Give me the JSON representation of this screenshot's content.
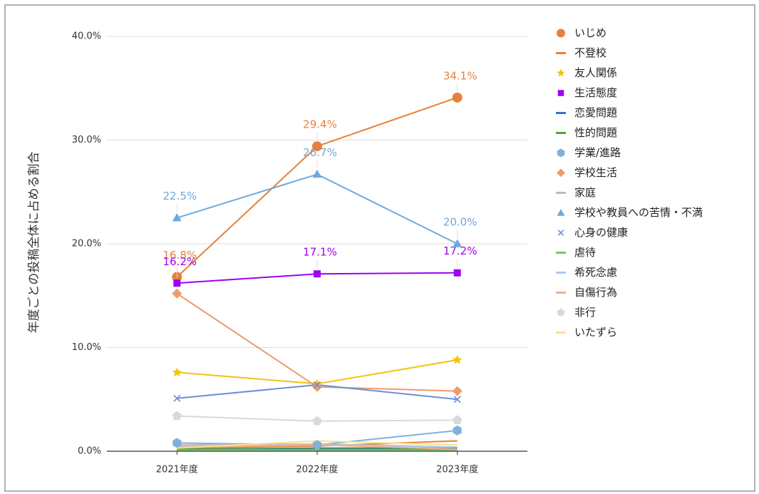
{
  "chart_data": {
    "type": "line",
    "ylabel": "年度ごとの投稿全体に占める割合",
    "categories": [
      "2021年度",
      "2022年度",
      "2023年度"
    ],
    "ylim": [
      0,
      40
    ],
    "yticks": [
      {
        "value": 0,
        "label": "0.0%"
      },
      {
        "value": 10,
        "label": "10.0%"
      },
      {
        "value": 20,
        "label": "20.0%"
      },
      {
        "value": 30,
        "label": "30.0%"
      },
      {
        "value": 40,
        "label": "40.0%"
      }
    ],
    "grid": true,
    "legend": "right",
    "series": [
      {
        "name": "いじめ",
        "color": "#e8803a",
        "marker": "circle",
        "values": [
          16.8,
          29.4,
          34.1
        ],
        "value_labels": [
          "16.8%",
          "29.4%",
          "34.1%"
        ]
      },
      {
        "name": "不登校",
        "color": "#e8803a",
        "marker": "none",
        "values": [
          0.3,
          0.5,
          1.0
        ]
      },
      {
        "name": "友人関係",
        "color": "#f4c20d",
        "marker": "star",
        "values": [
          7.6,
          6.5,
          8.8
        ]
      },
      {
        "name": "生活態度",
        "color": "#a000f0",
        "marker": "square",
        "values": [
          16.2,
          17.1,
          17.2
        ],
        "value_labels": [
          "16.2%",
          "17.1%",
          "17.2%"
        ]
      },
      {
        "name": "恋愛問題",
        "color": "#3c6fd1",
        "marker": "none",
        "values": [
          0.2,
          0.3,
          0.3
        ]
      },
      {
        "name": "性的問題",
        "color": "#4ca832",
        "marker": "none",
        "values": [
          0.2,
          0.2,
          0.2
        ]
      },
      {
        "name": "学業/進路",
        "color": "#7fb0e0",
        "marker": "hexagon",
        "values": [
          0.8,
          0.6,
          2.0
        ]
      },
      {
        "name": "学校生活",
        "color": "#ee9b6a",
        "marker": "diamond",
        "values": [
          15.2,
          6.2,
          5.8
        ]
      },
      {
        "name": "家庭",
        "color": "#bbbbbb",
        "marker": "none",
        "values": [
          0.6,
          0.7,
          0.4
        ]
      },
      {
        "name": "学校や教員への苦情・不満",
        "color": "#6fa8dc",
        "marker": "triangle",
        "values": [
          22.5,
          26.7,
          20.0
        ],
        "value_labels": [
          "22.5%",
          "26.7%",
          "20.0%"
        ]
      },
      {
        "name": "心身の健康",
        "color": "#6b8fd6",
        "marker": "x",
        "values": [
          5.1,
          6.4,
          5.0
        ]
      },
      {
        "name": "虐待",
        "color": "#7cc36b",
        "marker": "none",
        "values": [
          0.1,
          0.1,
          0.1
        ]
      },
      {
        "name": "希死念慮",
        "color": "#a9cbee",
        "marker": "none",
        "values": [
          0.5,
          0.6,
          0.4
        ]
      },
      {
        "name": "自傷行為",
        "color": "#f2b08f",
        "marker": "none",
        "values": [
          0.4,
          0.6,
          0.2
        ]
      },
      {
        "name": "非行",
        "color": "#d9d9d9",
        "marker": "pentagon",
        "values": [
          3.4,
          2.9,
          3.0
        ]
      },
      {
        "name": "いたずら",
        "color": "#fde08a",
        "marker": "none",
        "values": [
          0.3,
          1.0,
          0.6
        ]
      }
    ]
  }
}
